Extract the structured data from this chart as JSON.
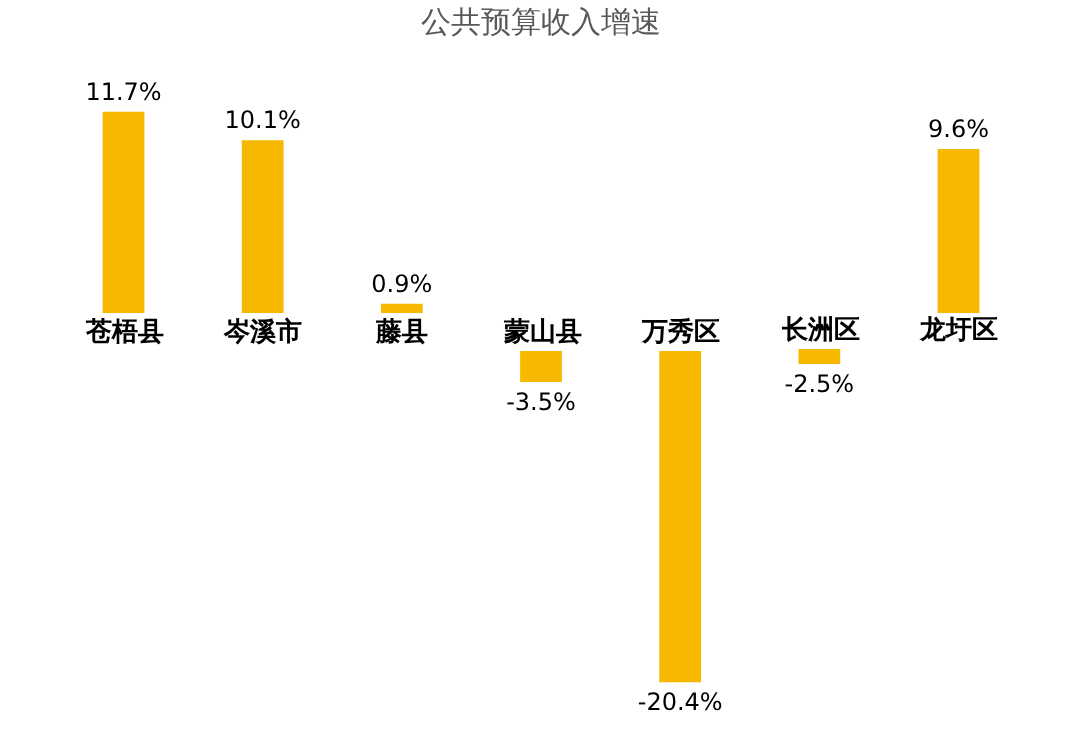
{
  "chart_data": {
    "type": "bar",
    "title": "公共预算收入增速",
    "categories": [
      "苍梧县",
      "岑溪市",
      "藤县",
      "蒙山县",
      "万秀区",
      "长洲区",
      "龙圩区"
    ],
    "values": [
      11.7,
      10.1,
      0.9,
      -3.5,
      -20.4,
      -2.5,
      9.6
    ],
    "value_labels": [
      "11.7%",
      "10.1%",
      "0.9%",
      "-3.5%",
      "-20.4%",
      "-2.5%",
      "9.6%"
    ],
    "color": "#f7b900",
    "legend": false
  }
}
